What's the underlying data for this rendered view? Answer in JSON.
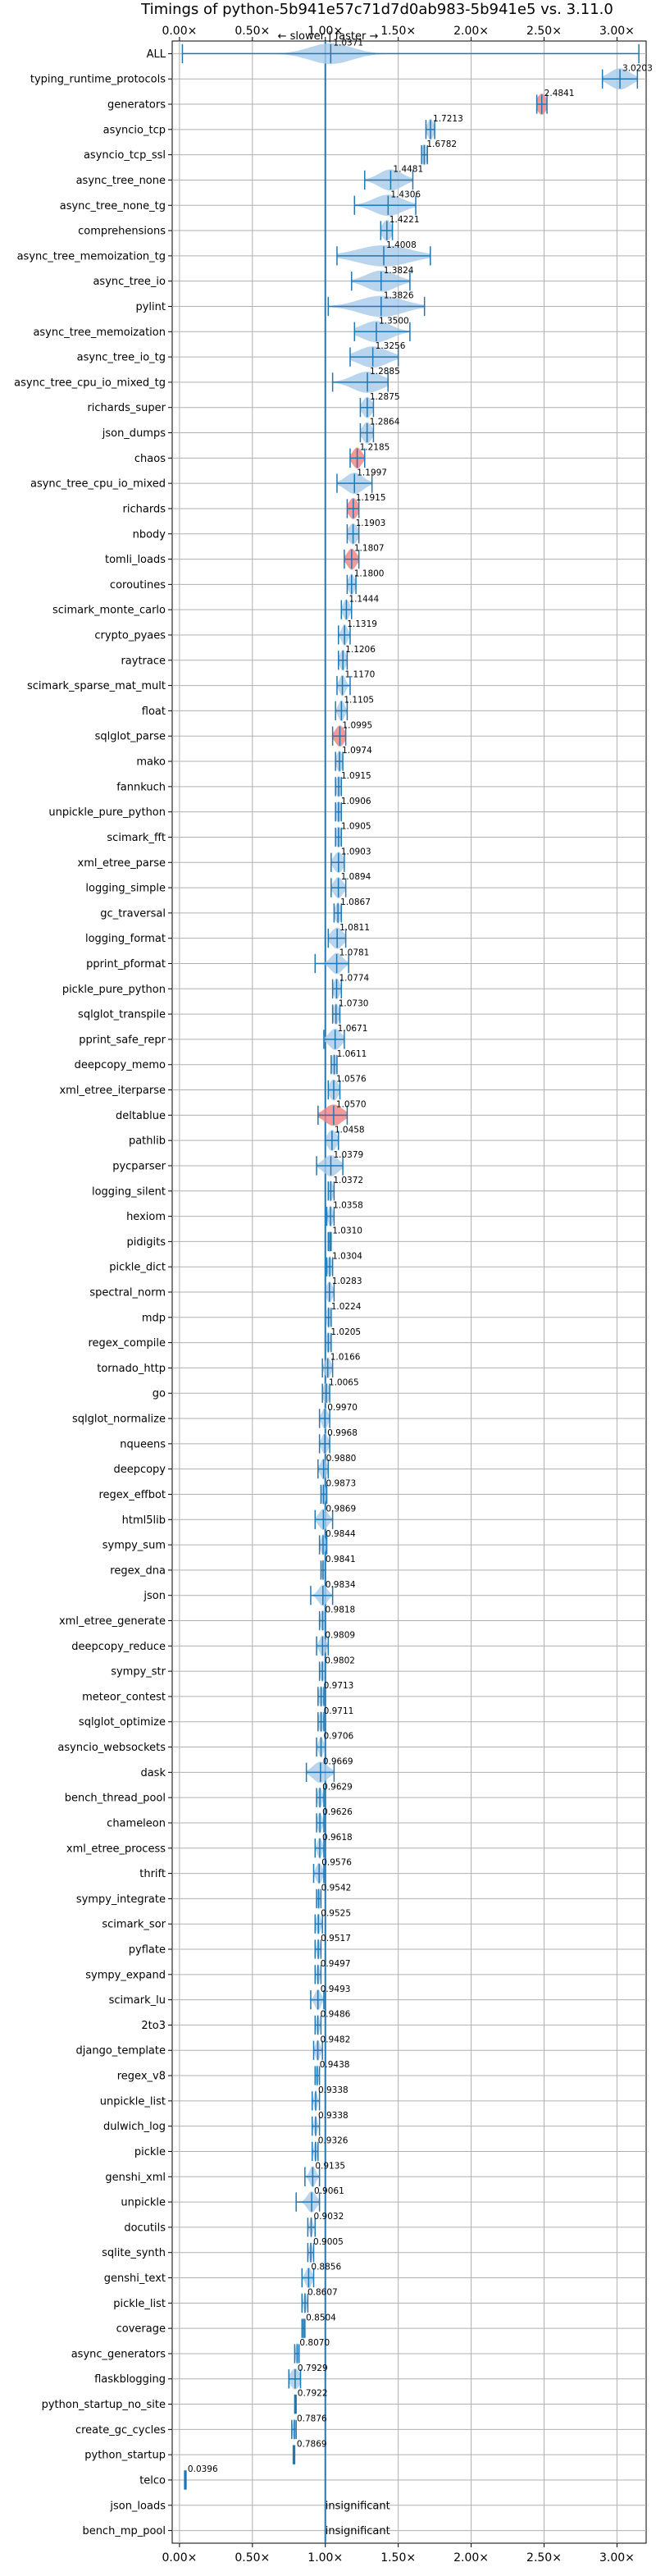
{
  "chart_data": {
    "type": "violin",
    "title": "Timings of python-5b941e57c71d7d0ab983-5b941e5 vs. 3.11.0",
    "subtitle": "← slower | faster →",
    "xlim": [
      -0.05,
      3.2
    ],
    "xticks": [
      0.0,
      0.5,
      1.0,
      1.5,
      2.0,
      2.5,
      3.0
    ],
    "xtick_labels": [
      "0.00×",
      "0.50×",
      "1.00×",
      "1.50×",
      "2.00×",
      "2.50×",
      "3.00×"
    ],
    "reference_line": 1.0,
    "grid": true,
    "colors": {
      "violin": "#a6cbe8",
      "violin_red": "#f08080",
      "whisker": "#1f77b4",
      "refline": "#1f77b4",
      "grid": "#b0b0b0"
    },
    "benchmarks": [
      {
        "name": "ALL",
        "value": 1.0371,
        "label": "1.0371",
        "min": 0.02,
        "max": 3.15,
        "spread": 0.14,
        "color": "blue"
      },
      {
        "name": "typing_runtime_protocols",
        "value": 3.0203,
        "label": "3.0203",
        "min": 2.9,
        "max": 3.14,
        "spread": 0.07,
        "color": "blue"
      },
      {
        "name": "generators",
        "value": 2.4841,
        "label": "2.4841",
        "min": 2.45,
        "max": 2.52,
        "spread": 0.03,
        "color": "red"
      },
      {
        "name": "asyncio_tcp",
        "value": 1.7213,
        "label": "1.7213",
        "min": 1.69,
        "max": 1.75,
        "spread": 0.02,
        "color": "blue"
      },
      {
        "name": "asyncio_tcp_ssl",
        "value": 1.6782,
        "label": "1.6782",
        "min": 1.66,
        "max": 1.7,
        "spread": 0.02,
        "color": "blue"
      },
      {
        "name": "async_tree_none",
        "value": 1.4481,
        "label": "1.4481",
        "min": 1.27,
        "max": 1.6,
        "spread": 0.08,
        "color": "blue"
      },
      {
        "name": "async_tree_none_tg",
        "value": 1.4306,
        "label": "1.4306",
        "min": 1.2,
        "max": 1.62,
        "spread": 0.1,
        "color": "blue"
      },
      {
        "name": "comprehensions",
        "value": 1.4221,
        "label": "1.4221",
        "min": 1.38,
        "max": 1.46,
        "spread": 0.03,
        "color": "blue"
      },
      {
        "name": "async_tree_memoization_tg",
        "value": 1.4008,
        "label": "1.4008",
        "min": 1.08,
        "max": 1.72,
        "spread": 0.18,
        "color": "blue"
      },
      {
        "name": "async_tree_io",
        "value": 1.3824,
        "label": "1.3824",
        "min": 1.18,
        "max": 1.58,
        "spread": 0.1,
        "color": "blue"
      },
      {
        "name": "pylint",
        "value": 1.3826,
        "label": "1.3826",
        "min": 1.02,
        "max": 1.68,
        "spread": 0.15,
        "color": "blue"
      },
      {
        "name": "async_tree_memoization",
        "value": 1.35,
        "label": "1.3500",
        "min": 1.2,
        "max": 1.58,
        "spread": 0.1,
        "color": "blue"
      },
      {
        "name": "async_tree_io_tg",
        "value": 1.3256,
        "label": "1.3256",
        "min": 1.17,
        "max": 1.5,
        "spread": 0.1,
        "color": "blue"
      },
      {
        "name": "async_tree_cpu_io_mixed_tg",
        "value": 1.2885,
        "label": "1.2885",
        "min": 1.05,
        "max": 1.43,
        "spread": 0.1,
        "color": "blue"
      },
      {
        "name": "richards_super",
        "value": 1.2875,
        "label": "1.2875",
        "min": 1.24,
        "max": 1.33,
        "spread": 0.03,
        "color": "blue"
      },
      {
        "name": "json_dumps",
        "value": 1.2864,
        "label": "1.2864",
        "min": 1.24,
        "max": 1.33,
        "spread": 0.03,
        "color": "blue"
      },
      {
        "name": "chaos",
        "value": 1.2185,
        "label": "1.2185",
        "min": 1.17,
        "max": 1.27,
        "spread": 0.03,
        "color": "red"
      },
      {
        "name": "async_tree_cpu_io_mixed",
        "value": 1.1997,
        "label": "1.1997",
        "min": 1.08,
        "max": 1.32,
        "spread": 0.06,
        "color": "blue"
      },
      {
        "name": "richards",
        "value": 1.1915,
        "label": "1.1915",
        "min": 1.15,
        "max": 1.23,
        "spread": 0.03,
        "color": "red"
      },
      {
        "name": "nbody",
        "value": 1.1903,
        "label": "1.1903",
        "min": 1.15,
        "max": 1.23,
        "spread": 0.03,
        "color": "blue"
      },
      {
        "name": "tomli_loads",
        "value": 1.1807,
        "label": "1.1807",
        "min": 1.13,
        "max": 1.23,
        "spread": 0.03,
        "color": "red"
      },
      {
        "name": "coroutines",
        "value": 1.18,
        "label": "1.1800",
        "min": 1.15,
        "max": 1.21,
        "spread": 0.02,
        "color": "blue"
      },
      {
        "name": "scimark_monte_carlo",
        "value": 1.1444,
        "label": "1.1444",
        "min": 1.11,
        "max": 1.18,
        "spread": 0.02,
        "color": "blue"
      },
      {
        "name": "crypto_pyaes",
        "value": 1.1319,
        "label": "1.1319",
        "min": 1.09,
        "max": 1.17,
        "spread": 0.02,
        "color": "blue"
      },
      {
        "name": "raytrace",
        "value": 1.1206,
        "label": "1.1206",
        "min": 1.09,
        "max": 1.15,
        "spread": 0.02,
        "color": "blue"
      },
      {
        "name": "scimark_sparse_mat_mult",
        "value": 1.117,
        "label": "1.1170",
        "min": 1.08,
        "max": 1.17,
        "spread": 0.02,
        "color": "blue"
      },
      {
        "name": "float",
        "value": 1.1105,
        "label": "1.1105",
        "min": 1.07,
        "max": 1.15,
        "spread": 0.02,
        "color": "blue"
      },
      {
        "name": "sqlglot_parse",
        "value": 1.0995,
        "label": "1.0995",
        "min": 1.05,
        "max": 1.14,
        "spread": 0.03,
        "color": "red"
      },
      {
        "name": "mako",
        "value": 1.0974,
        "label": "1.0974",
        "min": 1.07,
        "max": 1.12,
        "spread": 0.02,
        "color": "blue"
      },
      {
        "name": "fannkuch",
        "value": 1.0915,
        "label": "1.0915",
        "min": 1.07,
        "max": 1.11,
        "spread": 0.02,
        "color": "blue"
      },
      {
        "name": "unpickle_pure_python",
        "value": 1.0906,
        "label": "1.0906",
        "min": 1.07,
        "max": 1.11,
        "spread": 0.02,
        "color": "blue"
      },
      {
        "name": "scimark_fft",
        "value": 1.0905,
        "label": "1.0905",
        "min": 1.07,
        "max": 1.11,
        "spread": 0.02,
        "color": "blue"
      },
      {
        "name": "xml_etree_parse",
        "value": 1.0903,
        "label": "1.0903",
        "min": 1.04,
        "max": 1.13,
        "spread": 0.03,
        "color": "blue"
      },
      {
        "name": "logging_simple",
        "value": 1.0894,
        "label": "1.0894",
        "min": 1.04,
        "max": 1.14,
        "spread": 0.03,
        "color": "blue"
      },
      {
        "name": "gc_traversal",
        "value": 1.0867,
        "label": "1.0867",
        "min": 1.06,
        "max": 1.11,
        "spread": 0.02,
        "color": "blue"
      },
      {
        "name": "logging_format",
        "value": 1.0811,
        "label": "1.0811",
        "min": 1.02,
        "max": 1.14,
        "spread": 0.04,
        "color": "blue"
      },
      {
        "name": "pprint_pformat",
        "value": 1.0781,
        "label": "1.0781",
        "min": 0.93,
        "max": 1.16,
        "spread": 0.04,
        "color": "blue"
      },
      {
        "name": "pickle_pure_python",
        "value": 1.0774,
        "label": "1.0774",
        "min": 1.05,
        "max": 1.11,
        "spread": 0.02,
        "color": "blue"
      },
      {
        "name": "sqlglot_transpile",
        "value": 1.073,
        "label": "1.0730",
        "min": 1.05,
        "max": 1.1,
        "spread": 0.02,
        "color": "blue"
      },
      {
        "name": "pprint_safe_repr",
        "value": 1.0671,
        "label": "1.0671",
        "min": 0.99,
        "max": 1.13,
        "spread": 0.04,
        "color": "blue"
      },
      {
        "name": "deepcopy_memo",
        "value": 1.0611,
        "label": "1.0611",
        "min": 1.04,
        "max": 1.08,
        "spread": 0.02,
        "color": "blue"
      },
      {
        "name": "xml_etree_iterparse",
        "value": 1.0576,
        "label": "1.0576",
        "min": 1.02,
        "max": 1.1,
        "spread": 0.03,
        "color": "blue"
      },
      {
        "name": "deltablue",
        "value": 1.057,
        "label": "1.0570",
        "min": 0.95,
        "max": 1.15,
        "spread": 0.06,
        "color": "red"
      },
      {
        "name": "pathlib",
        "value": 1.0458,
        "label": "1.0458",
        "min": 1.0,
        "max": 1.09,
        "spread": 0.03,
        "color": "blue"
      },
      {
        "name": "pycparser",
        "value": 1.0379,
        "label": "1.0379",
        "min": 0.94,
        "max": 1.12,
        "spread": 0.05,
        "color": "blue"
      },
      {
        "name": "logging_silent",
        "value": 1.0372,
        "label": "1.0372",
        "min": 1.02,
        "max": 1.06,
        "spread": 0.015,
        "color": "blue"
      },
      {
        "name": "hexiom",
        "value": 1.0358,
        "label": "1.0358",
        "min": 1.01,
        "max": 1.06,
        "spread": 0.015,
        "color": "blue"
      },
      {
        "name": "pidigits",
        "value": 1.031,
        "label": "1.0310",
        "min": 1.02,
        "max": 1.04,
        "spread": 0.01,
        "color": "blue"
      },
      {
        "name": "pickle_dict",
        "value": 1.0304,
        "label": "1.0304",
        "min": 1.01,
        "max": 1.05,
        "spread": 0.015,
        "color": "blue"
      },
      {
        "name": "spectral_norm",
        "value": 1.0283,
        "label": "1.0283",
        "min": 1.0,
        "max": 1.06,
        "spread": 0.02,
        "color": "blue"
      },
      {
        "name": "mdp",
        "value": 1.0224,
        "label": "1.0224",
        "min": 1.0,
        "max": 1.04,
        "spread": 0.015,
        "color": "blue"
      },
      {
        "name": "regex_compile",
        "value": 1.0205,
        "label": "1.0205",
        "min": 1.0,
        "max": 1.04,
        "spread": 0.015,
        "color": "blue"
      },
      {
        "name": "tornado_http",
        "value": 1.0166,
        "label": "1.0166",
        "min": 0.98,
        "max": 1.05,
        "spread": 0.02,
        "color": "blue"
      },
      {
        "name": "go",
        "value": 1.0065,
        "label": "1.0065",
        "min": 0.98,
        "max": 1.03,
        "spread": 0.02,
        "color": "blue"
      },
      {
        "name": "sqlglot_normalize",
        "value": 0.997,
        "label": "0.9970",
        "min": 0.96,
        "max": 1.03,
        "spread": 0.02,
        "color": "blue"
      },
      {
        "name": "nqueens",
        "value": 0.9968,
        "label": "0.9968",
        "min": 0.96,
        "max": 1.03,
        "spread": 0.02,
        "color": "blue"
      },
      {
        "name": "deepcopy",
        "value": 0.988,
        "label": "0.9880",
        "min": 0.95,
        "max": 1.02,
        "spread": 0.02,
        "color": "blue"
      },
      {
        "name": "regex_effbot",
        "value": 0.9873,
        "label": "0.9873",
        "min": 0.97,
        "max": 1.01,
        "spread": 0.015,
        "color": "blue"
      },
      {
        "name": "html5lib",
        "value": 0.9869,
        "label": "0.9869",
        "min": 0.93,
        "max": 1.05,
        "spread": 0.03,
        "color": "blue"
      },
      {
        "name": "sympy_sum",
        "value": 0.9844,
        "label": "0.9844",
        "min": 0.96,
        "max": 1.01,
        "spread": 0.015,
        "color": "blue"
      },
      {
        "name": "regex_dna",
        "value": 0.9841,
        "label": "0.9841",
        "min": 0.97,
        "max": 1.0,
        "spread": 0.01,
        "color": "blue"
      },
      {
        "name": "json",
        "value": 0.9834,
        "label": "0.9834",
        "min": 0.9,
        "max": 1.05,
        "spread": 0.03,
        "color": "blue"
      },
      {
        "name": "xml_etree_generate",
        "value": 0.9818,
        "label": "0.9818",
        "min": 0.96,
        "max": 1.0,
        "spread": 0.015,
        "color": "blue"
      },
      {
        "name": "deepcopy_reduce",
        "value": 0.9809,
        "label": "0.9809",
        "min": 0.94,
        "max": 1.02,
        "spread": 0.02,
        "color": "blue"
      },
      {
        "name": "sympy_str",
        "value": 0.9802,
        "label": "0.9802",
        "min": 0.96,
        "max": 1.0,
        "spread": 0.015,
        "color": "blue"
      },
      {
        "name": "meteor_contest",
        "value": 0.9713,
        "label": "0.9713",
        "min": 0.95,
        "max": 0.99,
        "spread": 0.015,
        "color": "blue"
      },
      {
        "name": "sqlglot_optimize",
        "value": 0.9711,
        "label": "0.9711",
        "min": 0.95,
        "max": 0.99,
        "spread": 0.015,
        "color": "blue"
      },
      {
        "name": "asyncio_websockets",
        "value": 0.9706,
        "label": "0.9706",
        "min": 0.94,
        "max": 1.0,
        "spread": 0.015,
        "color": "blue"
      },
      {
        "name": "dask",
        "value": 0.9669,
        "label": "0.9669",
        "min": 0.87,
        "max": 1.06,
        "spread": 0.05,
        "color": "blue"
      },
      {
        "name": "bench_thread_pool",
        "value": 0.9629,
        "label": "0.9629",
        "min": 0.94,
        "max": 0.99,
        "spread": 0.015,
        "color": "blue"
      },
      {
        "name": "chameleon",
        "value": 0.9626,
        "label": "0.9626",
        "min": 0.94,
        "max": 0.99,
        "spread": 0.015,
        "color": "blue"
      },
      {
        "name": "xml_etree_process",
        "value": 0.9618,
        "label": "0.9618",
        "min": 0.93,
        "max": 0.99,
        "spread": 0.015,
        "color": "blue"
      },
      {
        "name": "thrift",
        "value": 0.9576,
        "label": "0.9576",
        "min": 0.92,
        "max": 0.99,
        "spread": 0.02,
        "color": "blue"
      },
      {
        "name": "sympy_integrate",
        "value": 0.9542,
        "label": "0.9542",
        "min": 0.94,
        "max": 0.97,
        "spread": 0.01,
        "color": "blue"
      },
      {
        "name": "scimark_sor",
        "value": 0.9525,
        "label": "0.9525",
        "min": 0.93,
        "max": 0.98,
        "spread": 0.015,
        "color": "blue"
      },
      {
        "name": "pyflate",
        "value": 0.9517,
        "label": "0.9517",
        "min": 0.93,
        "max": 0.97,
        "spread": 0.01,
        "color": "blue"
      },
      {
        "name": "sympy_expand",
        "value": 0.9497,
        "label": "0.9497",
        "min": 0.93,
        "max": 0.97,
        "spread": 0.01,
        "color": "blue"
      },
      {
        "name": "scimark_lu",
        "value": 0.9493,
        "label": "0.9493",
        "min": 0.9,
        "max": 0.99,
        "spread": 0.02,
        "color": "blue"
      },
      {
        "name": "2to3",
        "value": 0.9486,
        "label": "0.9486",
        "min": 0.93,
        "max": 0.97,
        "spread": 0.01,
        "color": "blue"
      },
      {
        "name": "django_template",
        "value": 0.9482,
        "label": "0.9482",
        "min": 0.92,
        "max": 0.98,
        "spread": 0.015,
        "color": "blue"
      },
      {
        "name": "regex_v8",
        "value": 0.9438,
        "label": "0.9438",
        "min": 0.93,
        "max": 0.96,
        "spread": 0.01,
        "color": "blue"
      },
      {
        "name": "unpickle_list",
        "value": 0.9338,
        "label": "0.9338",
        "min": 0.91,
        "max": 0.96,
        "spread": 0.01,
        "color": "blue"
      },
      {
        "name": "dulwich_log",
        "value": 0.9338,
        "label": "0.9338",
        "min": 0.91,
        "max": 0.96,
        "spread": 0.01,
        "color": "blue"
      },
      {
        "name": "pickle",
        "value": 0.9326,
        "label": "0.9326",
        "min": 0.91,
        "max": 0.95,
        "spread": 0.01,
        "color": "blue"
      },
      {
        "name": "genshi_xml",
        "value": 0.9135,
        "label": "0.9135",
        "min": 0.86,
        "max": 0.96,
        "spread": 0.02,
        "color": "blue"
      },
      {
        "name": "unpickle",
        "value": 0.9061,
        "label": "0.9061",
        "min": 0.8,
        "max": 0.96,
        "spread": 0.03,
        "color": "blue"
      },
      {
        "name": "docutils",
        "value": 0.9032,
        "label": "0.9032",
        "min": 0.88,
        "max": 0.93,
        "spread": 0.01,
        "color": "blue"
      },
      {
        "name": "sqlite_synth",
        "value": 0.9005,
        "label": "0.9005",
        "min": 0.88,
        "max": 0.92,
        "spread": 0.01,
        "color": "blue"
      },
      {
        "name": "genshi_text",
        "value": 0.8856,
        "label": "0.8856",
        "min": 0.84,
        "max": 0.92,
        "spread": 0.02,
        "color": "blue"
      },
      {
        "name": "pickle_list",
        "value": 0.8607,
        "label": "0.8607",
        "min": 0.84,
        "max": 0.88,
        "spread": 0.01,
        "color": "blue"
      },
      {
        "name": "coverage",
        "value": 0.8504,
        "label": "0.8504",
        "min": 0.84,
        "max": 0.86,
        "spread": 0.01,
        "color": "blue"
      },
      {
        "name": "async_generators",
        "value": 0.807,
        "label": "0.8070",
        "min": 0.79,
        "max": 0.82,
        "spread": 0.01,
        "color": "blue"
      },
      {
        "name": "flaskblogging",
        "value": 0.7929,
        "label": "0.7929",
        "min": 0.75,
        "max": 0.83,
        "spread": 0.03,
        "color": "blue"
      },
      {
        "name": "python_startup_no_site",
        "value": 0.7922,
        "label": "0.7922",
        "min": 0.79,
        "max": 0.8,
        "spread": 0.005,
        "color": "blue"
      },
      {
        "name": "create_gc_cycles",
        "value": 0.7876,
        "label": "0.7876",
        "min": 0.77,
        "max": 0.8,
        "spread": 0.01,
        "color": "blue"
      },
      {
        "name": "python_startup",
        "value": 0.7869,
        "label": "0.7869",
        "min": 0.78,
        "max": 0.79,
        "spread": 0.005,
        "color": "blue"
      },
      {
        "name": "telco",
        "value": 0.0396,
        "label": "0.0396",
        "min": 0.035,
        "max": 0.045,
        "spread": 0.004,
        "color": "blue"
      },
      {
        "name": "json_loads",
        "value": null,
        "label": "insignificant",
        "color": "none"
      },
      {
        "name": "bench_mp_pool",
        "value": null,
        "label": "insignificant",
        "color": "none"
      }
    ]
  }
}
